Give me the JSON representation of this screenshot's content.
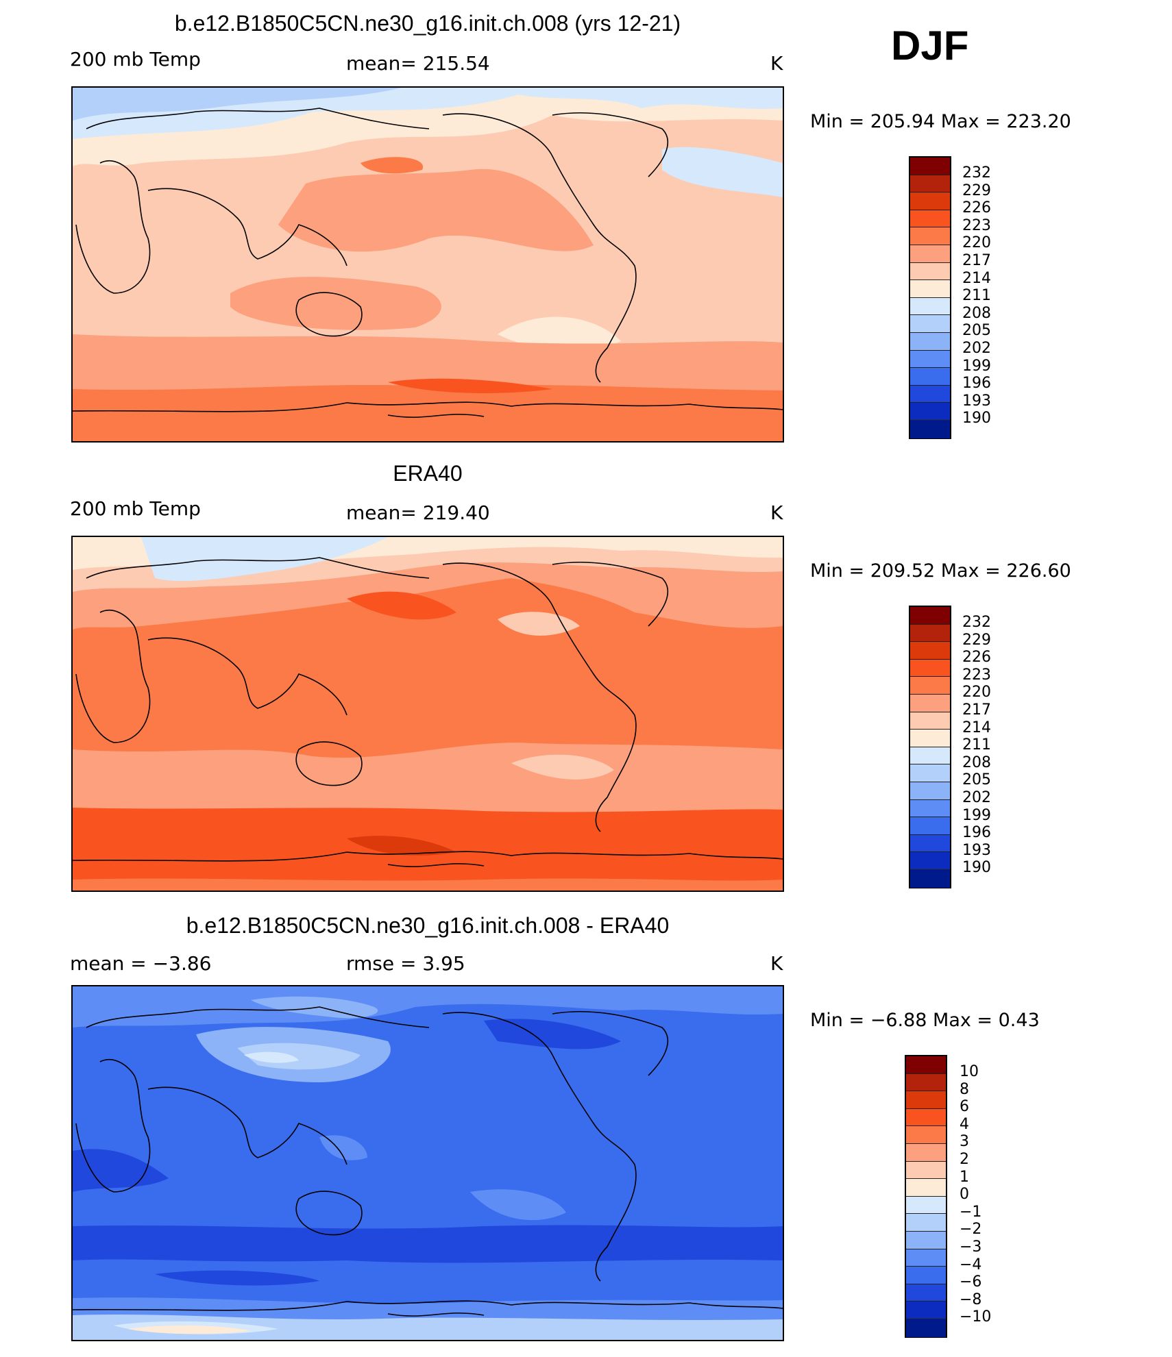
{
  "season": "DJF",
  "panels": [
    {
      "title": "b.e12.B1850C5CN.ne30_g16.init.ch.008 (yrs 12-21)",
      "left_label": "200 mb Temp",
      "center_label": "mean= 215.54",
      "unit": "K",
      "minmax": "Min = 205.94 Max = 223.20",
      "colorbar_ticks": [
        "232",
        "229",
        "226",
        "223",
        "220",
        "217",
        "214",
        "211",
        "208",
        "205",
        "202",
        "199",
        "196",
        "193",
        "190"
      ]
    },
    {
      "title": "ERA40",
      "left_label": "200 mb Temp",
      "center_label": "mean= 219.40",
      "unit": "K",
      "minmax": "Min = 209.52 Max = 226.60",
      "colorbar_ticks": [
        "232",
        "229",
        "226",
        "223",
        "220",
        "217",
        "214",
        "211",
        "208",
        "205",
        "202",
        "199",
        "196",
        "193",
        "190"
      ]
    },
    {
      "title": "b.e12.B1850C5CN.ne30_g16.init.ch.008 - ERA40",
      "left_label": "mean = −3.86",
      "center_label": "rmse = 3.95",
      "unit": "K",
      "minmax": "Min = −6.88 Max = 0.43",
      "colorbar_ticks": [
        "10",
        "8",
        "6",
        "4",
        "3",
        "2",
        "1",
        "0",
        "−1",
        "−2",
        "−3",
        "−4",
        "−6",
        "−8",
        "−10"
      ]
    }
  ],
  "colors": {
    "palette": [
      "#7f0000",
      "#b3220a",
      "#dd3a0c",
      "#f9541f",
      "#fb7a48",
      "#fca07d",
      "#fdcbb2",
      "#fdebd8",
      "#d6e8fb",
      "#b3d0fa",
      "#8cb2f8",
      "#5e8ef5",
      "#3a6cee",
      "#2048dd",
      "#0c2cbf",
      "#001a8c"
    ]
  }
}
